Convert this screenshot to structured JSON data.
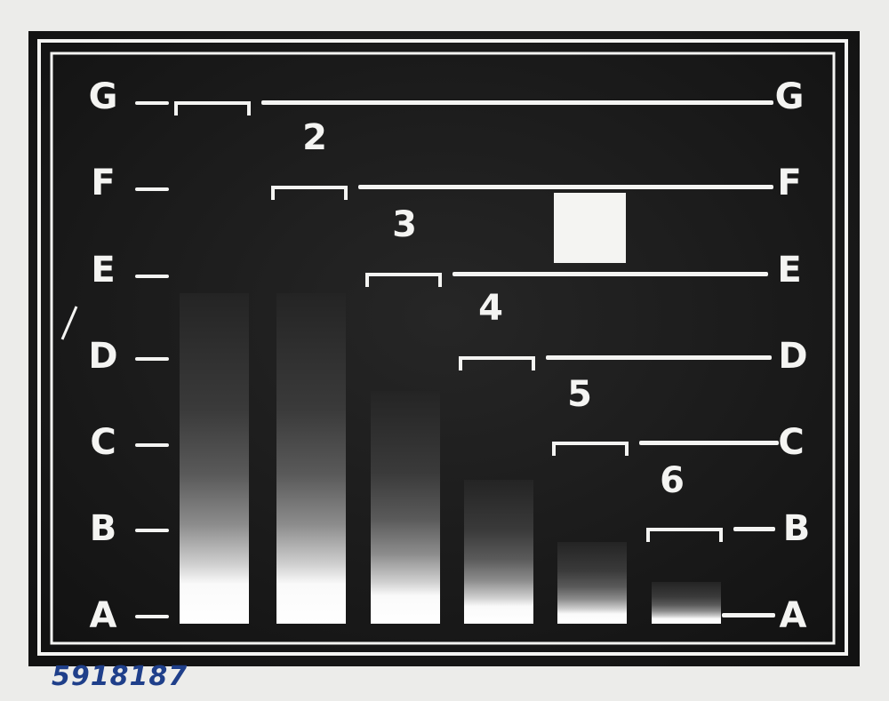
{
  "levels": [
    "G",
    "F",
    "E",
    "D",
    "C",
    "B",
    "A"
  ],
  "column_numbers": [
    "2",
    "3",
    "4",
    "5",
    "6"
  ],
  "archive_number": "5918187",
  "colors": {
    "background": "#1a1a1a",
    "marks": "#f4f4f2",
    "paper": "#ececea",
    "archive_ink": "#1f3f8a"
  }
}
